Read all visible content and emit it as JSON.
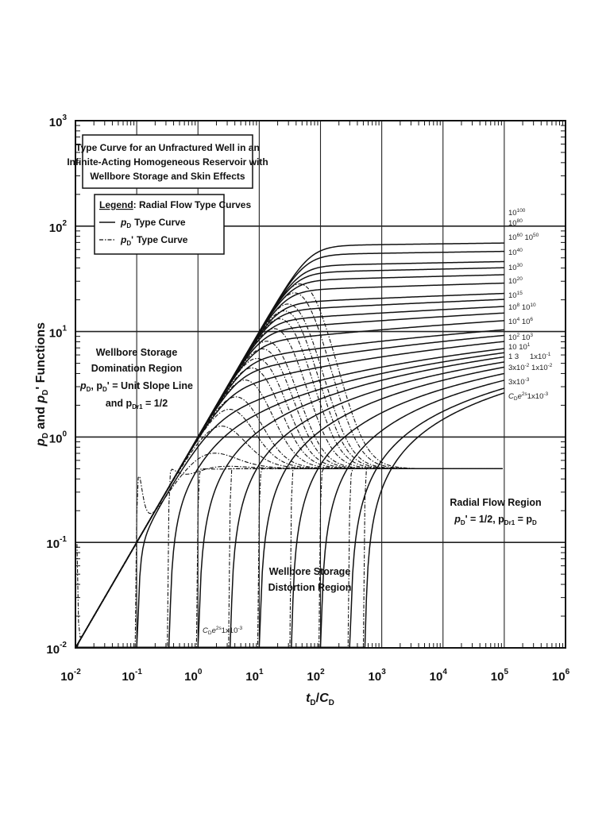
{
  "chart_data": {
    "type": "line",
    "x_scale": "log",
    "y_scale": "log",
    "xlim": [
      0.01,
      1000000
    ],
    "ylim": [
      0.01,
      1000
    ],
    "grid": true,
    "xlabel": {
      "var": "t",
      "sub": "D",
      "slash": "/",
      "var2": "C",
      "sub2": "D"
    },
    "ylabel": {
      "p1": "p",
      "sub1": "D",
      "and": " and ",
      "p2": "p",
      "sub2": "D",
      "prime": "'",
      "rest": " Functions"
    },
    "x_ticks": [
      {
        "base": "10",
        "exp": "-2"
      },
      {
        "base": "10",
        "exp": "-1"
      },
      {
        "base": "10",
        "exp": "0"
      },
      {
        "base": "10",
        "exp": "1"
      },
      {
        "base": "10",
        "exp": "2"
      },
      {
        "base": "10",
        "exp": "3"
      },
      {
        "base": "10",
        "exp": "4"
      },
      {
        "base": "10",
        "exp": "5"
      },
      {
        "base": "10",
        "exp": "6"
      }
    ],
    "y_ticks": [
      {
        "base": "10",
        "exp": "-2"
      },
      {
        "base": "10",
        "exp": "-1"
      },
      {
        "base": "10",
        "exp": "0"
      },
      {
        "base": "10",
        "exp": "1"
      },
      {
        "base": "10",
        "exp": "2"
      },
      {
        "base": "10",
        "exp": "3"
      }
    ],
    "title_box": [
      "Type Curve for an Unfractured Well in an",
      "Infinite-Acting Homogeneous Reservoir with",
      "Wellbore Storage and Skin Effects"
    ],
    "legend": {
      "header_underlined": "Legend",
      "header_rest": ": Radial Flow Type Curves",
      "entries": [
        {
          "sym": "p",
          "sub": "D",
          "prime": "",
          "text": "Type Curve",
          "style": "solid"
        },
        {
          "sym": "p",
          "sub": "D",
          "prime": "'",
          "text": "Type Curve",
          "style": "dashdot"
        }
      ]
    },
    "annotations": {
      "storage_domination": {
        "line1": "Wellbore Storage",
        "line2": "Domination Region",
        "line3": "p",
        "line3b": "D",
        "line3c": ", p",
        "line3d": "D",
        "line3e": "' = Unit Slope Line",
        "line4a": "and p",
        "line4b": "Dr1",
        "line4c": " = 1/2"
      },
      "radial_flow": {
        "line1": "Radial Flow Region",
        "line2a": "p",
        "line2b": "D",
        "line2c": "' = 1/2, p",
        "line2d": "Dr1",
        "line2e": " = p",
        "line2f": "D"
      },
      "storage_distortion": {
        "line1": "Wellbore Storage",
        "line2": "Distortion Region"
      },
      "min_curve_label": {
        "a": "C",
        "b": "D",
        "c": "e",
        "d": "2s",
        "e": "1x10",
        "f": "-3"
      }
    },
    "curve_labels": [
      {
        "text": "10",
        "exp": "100"
      },
      {
        "text": "10",
        "exp": "80"
      },
      {
        "text": "10",
        "exp": "60",
        "text2": " 10",
        "exp2": "50"
      },
      {
        "text": "10",
        "exp": "40"
      },
      {
        "text": "10",
        "exp": "30"
      },
      {
        "text": "10",
        "exp": "20"
      },
      {
        "text": "10",
        "exp": "15"
      },
      {
        "text": "10",
        "exp": "8",
        "text2": " 10",
        "exp2": "10"
      },
      {
        "text": "10",
        "exp": "4",
        "text2": " 10",
        "exp2": "6"
      },
      {
        "text": "10",
        "exp": "2",
        "text2": " 10",
        "exp2": "3"
      },
      {
        "text": "10",
        "exp": "",
        "text2": " 10",
        "exp2": "1"
      },
      {
        "text": "1",
        "exp": "",
        "text2": "  3",
        "exp2": ""
      },
      {
        "text": "",
        "exp": "",
        "text2": "1x10",
        "exp2": "-1"
      },
      {
        "text": "3x10",
        "exp": "-2",
        "text2": " 1x10",
        "exp2": "-2"
      },
      {
        "text": "3x10",
        "exp": "-3"
      },
      {
        "text": "C",
        "exp": "",
        "text2": "e",
        "exp2": "2s",
        "text3": "1x10",
        "exp3": "-3",
        "style": "cd"
      }
    ],
    "series_info": "pD and pD' type curves for CDe2s from 1x10^-3 to 10^100; pD' converges to 0.5",
    "series_params": [
      0.001,
      0.003,
      0.01,
      0.03,
      0.1,
      0.3,
      1,
      3,
      10,
      100,
      1000,
      10000,
      1000000,
      100000000,
      10000000000,
      1000000000000000.0,
      1e+20,
      1e+30,
      1e+40,
      1e+50,
      1e+60,
      1e+80,
      1e+100
    ],
    "plateau_pd_at_1e5": [
      2.62,
      2.9,
      3.45,
      4.0,
      4.6,
      5.15,
      5.75,
      6.3,
      6.9,
      8.05,
      9.2,
      10.4,
      12.7,
      15.0,
      17.3,
      20.2,
      23.0,
      28.8,
      34.6,
      40.3,
      46.1,
      57.6,
      69.1
    ],
    "dashdot_pd_prime_plateau": 0.5
  }
}
